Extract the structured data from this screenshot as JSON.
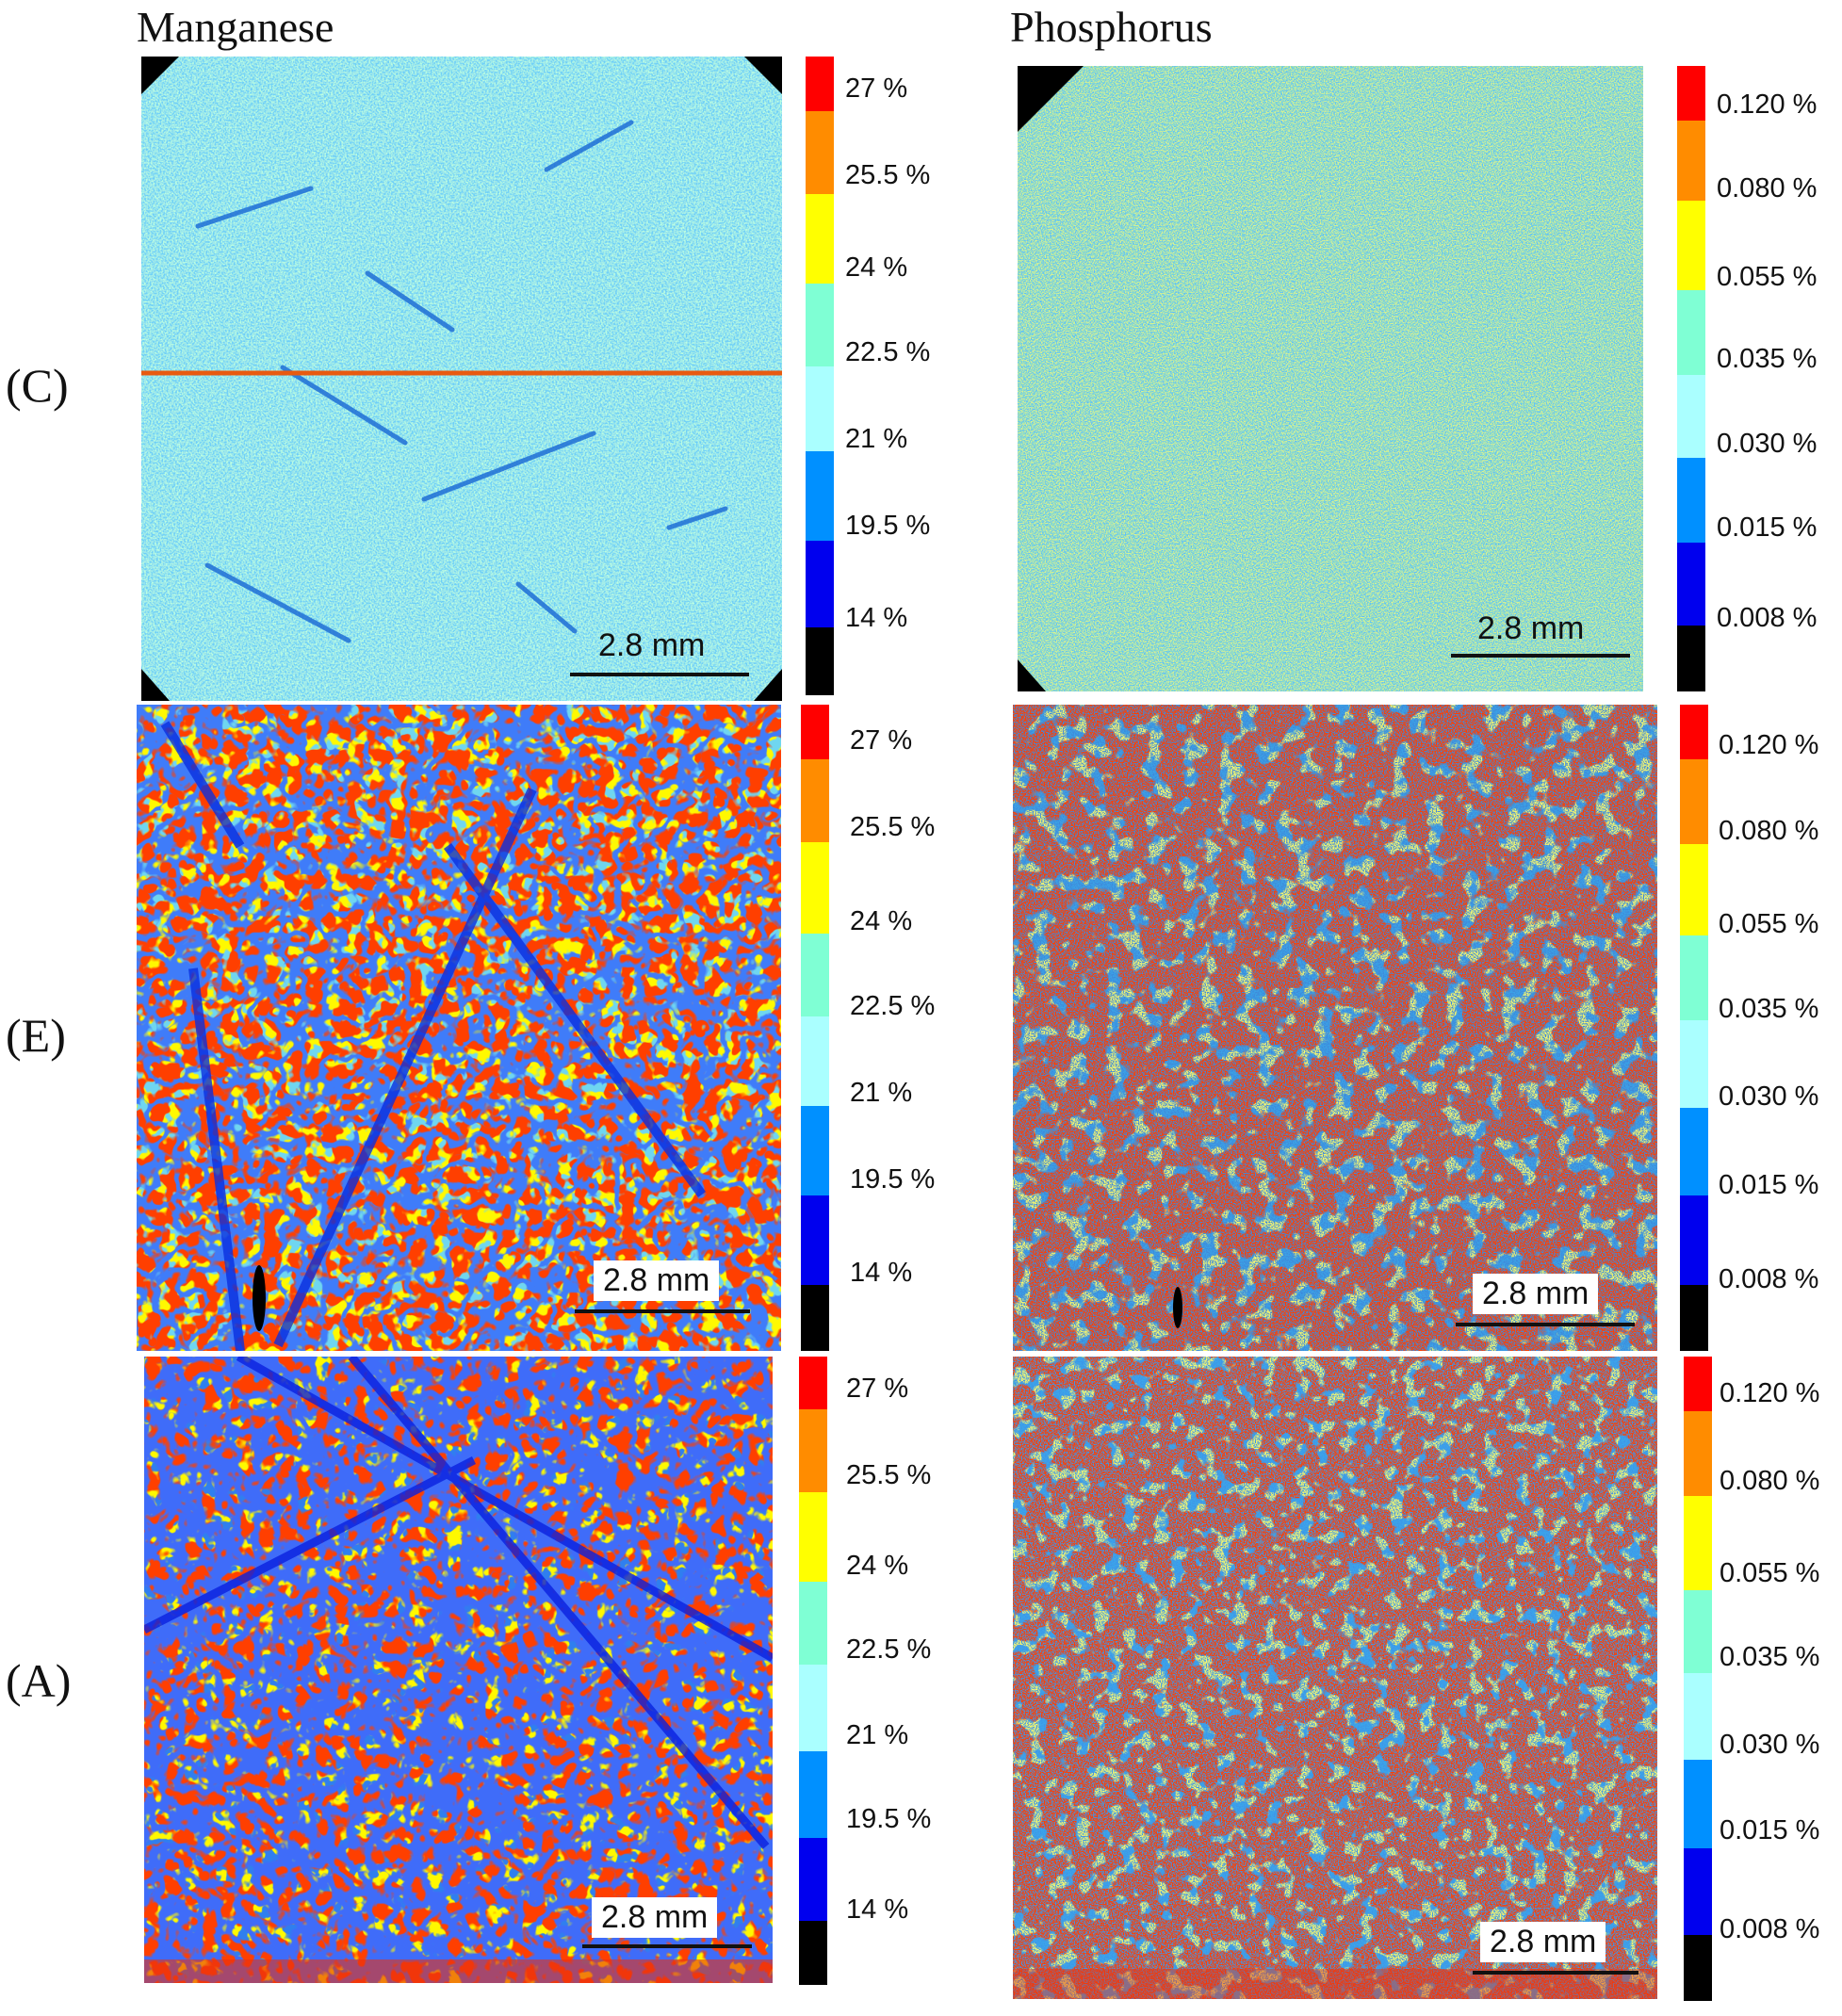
{
  "columns": {
    "left_title": "Manganese",
    "right_title": "Phosphorus"
  },
  "rows": [
    {
      "label": "(C)"
    },
    {
      "label": "(E)"
    },
    {
      "label": "(A)"
    }
  ],
  "scale_label": "2.8 mm",
  "colorbar": {
    "colors": [
      "#ff0000",
      "#ff8c00",
      "#ffff00",
      "#7fffd4",
      "#aaffff",
      "#0090ff",
      "#0000ee",
      "#000000"
    ],
    "manganese_ticks": [
      "27 %",
      "25.5 %",
      "24 %",
      "22.5 %",
      "21 %",
      "19.5 %",
      "14 %"
    ],
    "phosphorus_ticks": [
      "0.120 %",
      "0.080 %",
      "0.055 %",
      "0.035 %",
      "0.030 %",
      "0.015 %",
      "0.008 %"
    ]
  }
}
